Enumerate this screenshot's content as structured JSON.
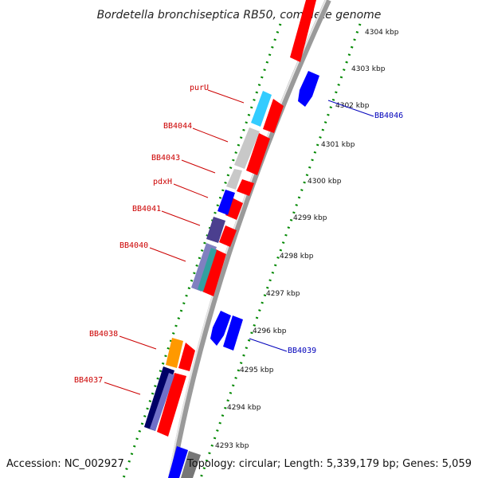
{
  "header": {
    "title": "Bordetella bronchiseptica RB50, complete genome"
  },
  "footer": {
    "accession": "Accession: NC_002927",
    "summary": "Topology: circular; Length: 5,339,179 bp; Genes: 5,059"
  },
  "scale": {
    "ticks": [
      "4304 kbp",
      "4303 kbp",
      "4302 kbp",
      "4301 kbp",
      "4300 kbp",
      "4299 kbp",
      "4298 kbp",
      "4297 kbp",
      "4296 kbp",
      "4295 kbp",
      "4294 kbp",
      "4293 kbp"
    ]
  },
  "colors": {
    "forward_strand": "#ff0000",
    "reverse_strand": "#0000ff",
    "label_forward": "#cc0000",
    "label_reverse": "#0000bb",
    "backbone": "#999999",
    "scale_dots": "#008800",
    "cyan_feature": "#33ccff",
    "grey_feature": "#c8c8c8",
    "purple_feature": "#4b3f8f",
    "orange_feature": "#ff9900",
    "navy_feature": "#000066"
  },
  "labels": {
    "left": [
      "purU",
      "BB4044",
      "BB4043",
      "pdxH",
      "BB4041",
      "BB4040",
      "BB4038",
      "BB4037"
    ],
    "right": [
      "BB4046",
      "BB4039"
    ]
  }
}
